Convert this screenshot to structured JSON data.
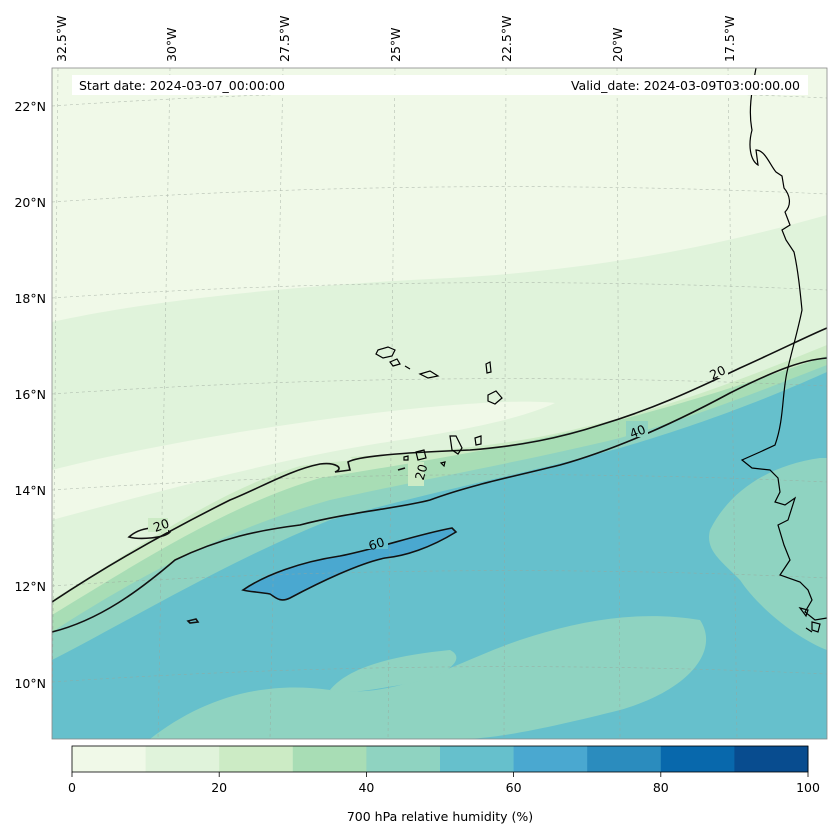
{
  "header": {
    "start_date": "Start date: 2024-03-07_00:00:00",
    "valid_date": "Valid_date: 2024-03-09T03:00:00.00"
  },
  "longitude_labels": [
    "32.5°W",
    "30°W",
    "27.5°W",
    "25°W",
    "22.5°W",
    "20°W",
    "17.5°W"
  ],
  "latitude_labels": [
    "22°N",
    "20°N",
    "18°N",
    "16°N",
    "14°N",
    "12°N",
    "10°N"
  ],
  "contour_labels": [
    {
      "id": "c20-a",
      "text": "20"
    },
    {
      "id": "c20-b",
      "text": "20"
    },
    {
      "id": "c20-c",
      "text": "20"
    },
    {
      "id": "c40",
      "text": "40"
    },
    {
      "id": "c60",
      "text": "60"
    }
  ],
  "colorbar": {
    "label": "700 hPa relative humidity (%)",
    "tick_labels": [
      "0",
      "20",
      "40",
      "60",
      "80",
      "100"
    ],
    "levels": [
      0,
      10,
      20,
      30,
      40,
      50,
      60,
      70,
      80,
      90,
      100
    ],
    "colors": [
      "#f0f9e8",
      "#e0f3db",
      "#ccebc5",
      "#a8ddb5",
      "#8fd3c1",
      "#66c0cc",
      "#4aa8d0",
      "#2b8cbe",
      "#0868ac",
      "#084c8f"
    ]
  },
  "map": {
    "projection": "Lambert conformal",
    "lon_range": [
      "32.5°W",
      "16°W"
    ],
    "lat_range": [
      "9°N",
      "22.5°N"
    ],
    "variable": "700 hPa relative humidity (%)"
  }
}
